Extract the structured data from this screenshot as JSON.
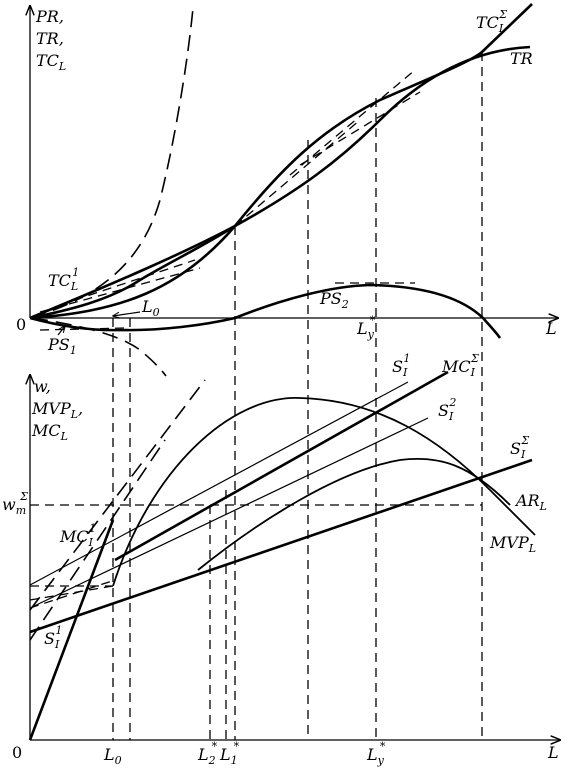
{
  "top_panel": {
    "y_axis_label": {
      "line1": "PR,",
      "line2": "TR,",
      "line3": "TC",
      "line3_sub": "L"
    },
    "x_axis_label": "L",
    "origin_label": "0",
    "labels": {
      "tc_sigma": {
        "main": "TC",
        "sub": "I",
        "sup": "Σ"
      },
      "tr": {
        "main": "TR"
      },
      "tc_one": {
        "main": "TC",
        "sub": "L",
        "sup": "1"
      },
      "ps_one": {
        "main": "PS",
        "sub": "1"
      },
      "ps_two": {
        "main": "PS",
        "sub": "2"
      },
      "l_zero": {
        "main": "L",
        "sub": "0"
      },
      "l_y_star": {
        "main": "L",
        "sub": "y",
        "sup": "*"
      }
    }
  },
  "bottom_panel": {
    "y_axis_label": {
      "line1": "w,",
      "line2": "MVP",
      "line2_sub": "L",
      "line2_end": ",",
      "line3": "MC",
      "line3_sub": "L"
    },
    "x_axis_label": "L",
    "origin_label": "0",
    "wm": {
      "main": "w",
      "sub": "m",
      "sup": "Σ"
    },
    "labels": {
      "s_one_top": {
        "main": "S",
        "sub": "I",
        "sup": "1"
      },
      "mc_sigma": {
        "main": "MC",
        "sub": "I",
        "sup": "Σ"
      },
      "s_two": {
        "main": "S",
        "sub": "I",
        "sup": "2"
      },
      "s_sigma": {
        "main": "S",
        "sub": "I",
        "sup": "Σ"
      },
      "ar": {
        "main": "AR",
        "sub": "L"
      },
      "mvp": {
        "main": "MVP",
        "sub": "L"
      },
      "mc_one": {
        "main": "MC",
        "sub": "I",
        "sup": "1"
      },
      "s_one_left": {
        "main": "S",
        "sub": "I",
        "sup": "1"
      }
    },
    "x_ticks": {
      "l0": {
        "main": "L",
        "sub": "0"
      },
      "l2": {
        "main": "L",
        "sub": "2",
        "sup": "*"
      },
      "l1": {
        "main": "L",
        "sub": "1",
        "sup": "*"
      },
      "ly": {
        "main": "L",
        "sub": "y",
        "sup": "*"
      }
    }
  }
}
